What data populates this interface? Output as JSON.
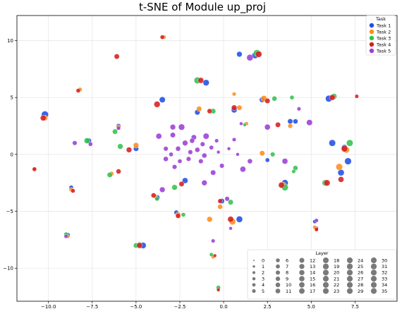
{
  "chart_data": {
    "type": "scatter",
    "title": "t-SNE of Module up_proj",
    "xlabel": "",
    "ylabel": "",
    "xlim": [
      -11.8,
      9.9
    ],
    "ylim": [
      -12.9,
      12.2
    ],
    "xticks": [
      -10.0,
      -7.5,
      -5.0,
      -2.5,
      0.0,
      2.5,
      5.0,
      7.5
    ],
    "xtick_labels": [
      "−10.0",
      "−7.5",
      "−5.0",
      "−2.5",
      "0.0",
      "2.5",
      "5.0",
      "7.5"
    ],
    "yticks": [
      -10,
      -5,
      0,
      5,
      10
    ],
    "ytick_labels": [
      "−10",
      "−5",
      "0",
      "5",
      "10"
    ],
    "grid": true,
    "legend_task": {
      "title": "Task",
      "placement": "top-right",
      "entries": [
        {
          "name": "Task 1",
          "color": "#1f4fe6"
        },
        {
          "name": "Task 2",
          "color": "#ff8c1a"
        },
        {
          "name": "Task 3",
          "color": "#33c24d"
        },
        {
          "name": "Task 4",
          "color": "#d61f1f"
        },
        {
          "name": "Task 5",
          "color": "#9b3fd6"
        }
      ]
    },
    "legend_layer": {
      "title": "Layer",
      "placement": "bottom-right",
      "entries": [
        "0",
        "1",
        "2",
        "3",
        "4",
        "5",
        "6",
        "7",
        "8",
        "9",
        "10",
        "11",
        "12",
        "13",
        "14",
        "15",
        "16",
        "17",
        "18",
        "19",
        "20",
        "21",
        "22",
        "23",
        "24",
        "25",
        "26",
        "27",
        "28",
        "29",
        "30",
        "31",
        "32",
        "33",
        "34",
        "35"
      ]
    },
    "series": [
      {
        "name": "Task 1",
        "color": "#1f4fe6",
        "points": [
          [
            -10.2,
            3.5,
            30
          ],
          [
            1.8,
            8.7,
            24
          ],
          [
            0.9,
            8.8,
            16
          ],
          [
            -3.5,
            4.8,
            20
          ],
          [
            -1.5,
            3.7,
            15
          ],
          [
            -1.0,
            6.3,
            22
          ],
          [
            0.6,
            3.9,
            18
          ],
          [
            2.2,
            4.8,
            16
          ],
          [
            3.8,
            2.9,
            14
          ],
          [
            4.1,
            2.9,
            12
          ],
          [
            6.0,
            4.9,
            26
          ],
          [
            6.2,
            1.0,
            26
          ],
          [
            7.1,
            -0.6,
            28
          ],
          [
            6.9,
            0.6,
            20
          ],
          [
            -5.0,
            0.5,
            14
          ],
          [
            -8.7,
            -2.9,
            8
          ],
          [
            -8.9,
            -7.1,
            12
          ],
          [
            -4.6,
            -8.0,
            22
          ],
          [
            -2.2,
            -2.3,
            18
          ],
          [
            -3.8,
            -3.8,
            16
          ],
          [
            -2.7,
            -5.1,
            10
          ],
          [
            -0.1,
            -4.1,
            14
          ],
          [
            0.9,
            -5.7,
            24
          ],
          [
            3.5,
            -2.5,
            24
          ],
          [
            5.2,
            -5.9,
            6
          ],
          [
            6.7,
            -1.6,
            24
          ],
          [
            2.5,
            -0.5,
            8
          ],
          [
            5.3,
            -6.5,
            6
          ],
          [
            -7.7,
            1.2,
            14
          ],
          [
            -6.0,
            2.5,
            10
          ]
        ]
      },
      {
        "name": "Task 2",
        "color": "#ff8c1a",
        "points": [
          [
            -3.4,
            10.3,
            6
          ],
          [
            -8.2,
            5.7,
            8
          ],
          [
            -6.0,
            2.4,
            10
          ],
          [
            -5.0,
            0.8,
            16
          ],
          [
            -1.4,
            4.0,
            14
          ],
          [
            0.6,
            5.3,
            6
          ],
          [
            1.3,
            2.7,
            6
          ],
          [
            0.9,
            4.1,
            14
          ],
          [
            2.3,
            4.9,
            22
          ],
          [
            3.8,
            2.5,
            10
          ],
          [
            -10.2,
            3.2,
            16
          ],
          [
            -10.8,
            -1.3,
            6
          ],
          [
            -8.7,
            -3.1,
            8
          ],
          [
            -6.4,
            -1.7,
            10
          ],
          [
            -3.9,
            -3.7,
            8
          ],
          [
            -0.8,
            -5.7,
            16
          ],
          [
            0.5,
            -5.9,
            26
          ],
          [
            -2.6,
            -5.3,
            14
          ],
          [
            -0.2,
            -4.6,
            12
          ],
          [
            3.4,
            -2.7,
            22
          ],
          [
            5.2,
            -6.4,
            6
          ],
          [
            6.6,
            -1.1,
            26
          ],
          [
            2.2,
            0.1,
            14
          ],
          [
            7.0,
            0.4,
            24
          ],
          [
            -0.6,
            -9.0,
            6
          ],
          [
            -0.3,
            -11.8,
            6
          ],
          [
            -8.9,
            -7.2,
            6
          ]
        ]
      },
      {
        "name": "Task 3",
        "color": "#33c24d",
        "points": [
          [
            1.9,
            8.9,
            28
          ],
          [
            -1.5,
            6.5,
            26
          ],
          [
            -0.6,
            3.8,
            14
          ],
          [
            2.9,
            4.9,
            12
          ],
          [
            3.9,
            5.0,
            8
          ],
          [
            -7.8,
            1.2,
            18
          ],
          [
            -6.2,
            2.0,
            14
          ],
          [
            -5.9,
            0.7,
            16
          ],
          [
            2.8,
            0.0,
            10
          ],
          [
            4.1,
            -1.2,
            12
          ],
          [
            3.5,
            -2.9,
            26
          ],
          [
            5.8,
            -2.5,
            22
          ],
          [
            7.2,
            1.0,
            26
          ],
          [
            6.3,
            5.1,
            18
          ],
          [
            -6.5,
            -1.8,
            14
          ],
          [
            -5.0,
            -8.0,
            14
          ],
          [
            -2.3,
            -5.3,
            8
          ],
          [
            -2.8,
            -2.9,
            16
          ],
          [
            -3.8,
            -3.9,
            8
          ],
          [
            0.4,
            -4.2,
            14
          ],
          [
            1.2,
            2.6,
            4
          ],
          [
            -9.0,
            -7.0,
            6
          ],
          [
            -0.7,
            -8.8,
            6
          ],
          [
            -0.3,
            -11.7,
            8
          ],
          [
            -4.8,
            -7.9,
            10
          ],
          [
            4.0,
            -1.5,
            6
          ]
        ]
      },
      {
        "name": "Task 4",
        "color": "#d61f1f",
        "points": [
          [
            -3.5,
            10.3,
            8
          ],
          [
            -6.1,
            8.6,
            14
          ],
          [
            2.0,
            8.8,
            24
          ],
          [
            -3.8,
            4.4,
            22
          ],
          [
            -1.3,
            6.5,
            18
          ],
          [
            -0.8,
            3.8,
            12
          ],
          [
            0.6,
            4.1,
            16
          ],
          [
            2.5,
            4.7,
            14
          ],
          [
            3.1,
            2.6,
            14
          ],
          [
            -10.3,
            3.2,
            18
          ],
          [
            -8.3,
            5.6,
            8
          ],
          [
            -5.4,
            0.4,
            16
          ],
          [
            -6.0,
            -1.5,
            12
          ],
          [
            -10.8,
            -1.3,
            8
          ],
          [
            -8.6,
            -3.2,
            8
          ],
          [
            -4.8,
            -8.0,
            18
          ],
          [
            -2.4,
            -2.6,
            14
          ],
          [
            -4.0,
            -3.6,
            12
          ],
          [
            -2.6,
            -5.4,
            12
          ],
          [
            -0.2,
            -4.1,
            10
          ],
          [
            0.4,
            -5.7,
            20
          ],
          [
            -0.5,
            -8.9,
            4
          ],
          [
            3.3,
            -2.7,
            20
          ],
          [
            5.9,
            -2.5,
            22
          ],
          [
            6.7,
            -2.2,
            18
          ],
          [
            6.9,
            0.5,
            24
          ],
          [
            7.6,
            5.1,
            6
          ],
          [
            6.2,
            5.0,
            18
          ],
          [
            -0.3,
            -11.9,
            4
          ],
          [
            5.3,
            -6.6,
            6
          ]
        ]
      },
      {
        "name": "Task 5",
        "color": "#9b3fd6",
        "points": [
          [
            1.5,
            8.5,
            24
          ],
          [
            -1.0,
            1.6,
            20
          ],
          [
            -1.7,
            1.5,
            14
          ],
          [
            -2.4,
            2.4,
            22
          ],
          [
            -2.9,
            1.7,
            14
          ],
          [
            -3.3,
            0.5,
            10
          ],
          [
            -3.0,
            0.0,
            8
          ],
          [
            -2.6,
            0.5,
            12
          ],
          [
            -2.2,
            1.0,
            16
          ],
          [
            -1.8,
            1.2,
            12
          ],
          [
            -1.5,
            0.4,
            12
          ],
          [
            -1.9,
            0.2,
            10
          ],
          [
            -1.3,
            -0.6,
            10
          ],
          [
            -2.0,
            -0.4,
            10
          ],
          [
            -2.5,
            -0.6,
            8
          ],
          [
            -2.8,
            -1.1,
            10
          ],
          [
            -3.3,
            -0.4,
            12
          ],
          [
            -3.7,
            1.6,
            18
          ],
          [
            -2.9,
            2.4,
            16
          ],
          [
            -1.2,
            0.9,
            10
          ],
          [
            -1.1,
            -0.1,
            12
          ],
          [
            -0.7,
            0.6,
            8
          ],
          [
            -0.4,
            1.2,
            6
          ],
          [
            -0.3,
            0.2,
            4
          ],
          [
            -0.6,
            -1.6,
            14
          ],
          [
            -1.1,
            -2.5,
            16
          ],
          [
            -0.1,
            -1.0,
            10
          ],
          [
            0.3,
            0.5,
            4
          ],
          [
            0.6,
            1.3,
            6
          ],
          [
            1.5,
            -0.6,
            12
          ],
          [
            1.1,
            -1.3,
            18
          ],
          [
            2.5,
            2.4,
            18
          ],
          [
            3.5,
            -0.6,
            18
          ],
          [
            4.9,
            2.8,
            20
          ],
          [
            -3.5,
            -3.1,
            16
          ],
          [
            0.2,
            -3.9,
            10
          ],
          [
            -0.6,
            -7.6,
            6
          ],
          [
            4.3,
            4.0,
            6
          ],
          [
            5.3,
            -5.8,
            6
          ],
          [
            -8.5,
            1.0,
            10
          ],
          [
            -7.6,
            0.9,
            8
          ],
          [
            -6.0,
            2.3,
            6
          ],
          [
            -9.0,
            -7.2,
            6
          ],
          [
            0.8,
            0.0,
            4
          ],
          [
            1.0,
            2.7,
            4
          ],
          [
            0.4,
            -6.5,
            4
          ]
        ]
      }
    ]
  }
}
